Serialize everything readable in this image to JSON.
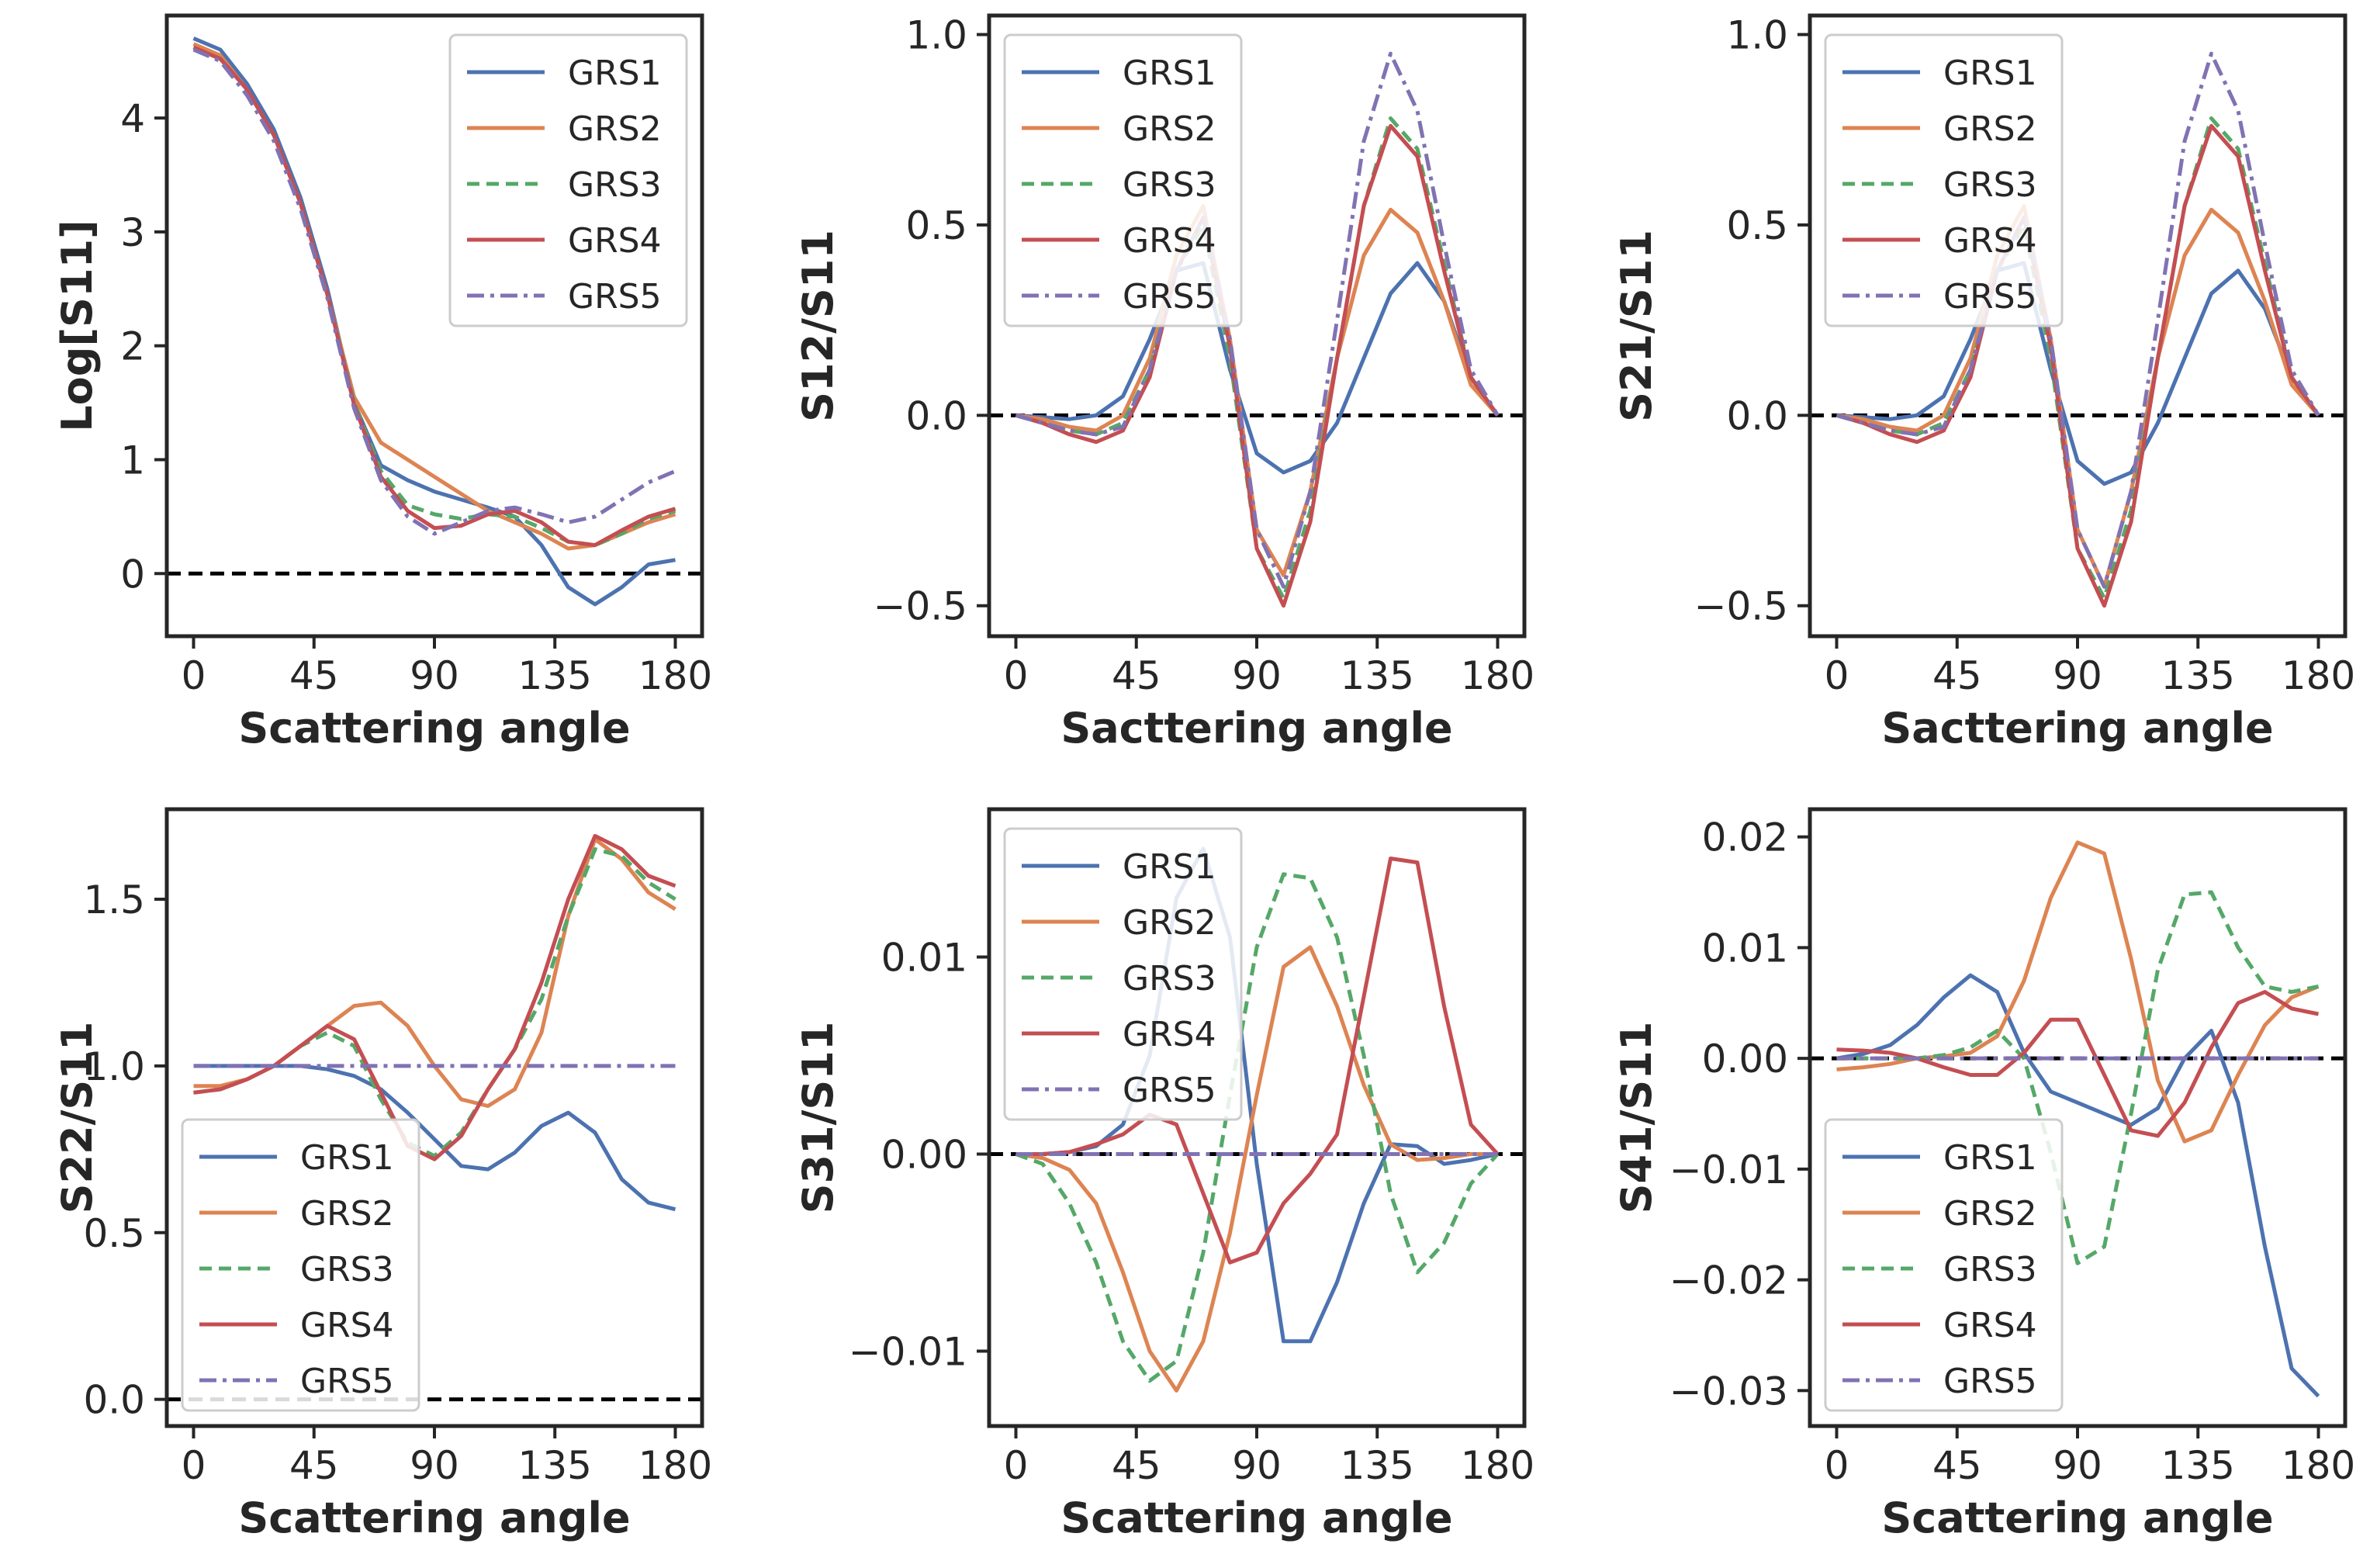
{
  "colors": {
    "GRS1": "#4c72b0",
    "GRS2": "#dd8452",
    "GRS3": "#55a868",
    "GRS4": "#c44e52",
    "GRS5": "#8172b3",
    "zero_line": "#000000",
    "axes": "#262626"
  },
  "chart_data": [
    {
      "type": "line",
      "title": "",
      "xlabel": "Scattering angle",
      "ylabel": "Log[S11]",
      "xlim": [
        -10,
        190
      ],
      "ylim": [
        -0.55,
        4.9
      ],
      "xticks": [
        0,
        45,
        90,
        135,
        180
      ],
      "xtick_labels": [
        "0",
        "45",
        "90",
        "135",
        "180"
      ],
      "yticks": [
        0,
        1,
        2,
        3,
        4
      ],
      "ytick_labels": [
        "0",
        "1",
        "2",
        "3",
        "4"
      ],
      "legend_position": "upper-right",
      "zero_line": 0,
      "x": [
        0,
        10,
        20,
        30,
        40,
        50,
        60,
        70,
        80,
        90,
        100,
        110,
        120,
        130,
        140,
        150,
        160,
        170,
        180
      ],
      "series": [
        {
          "name": "GRS1",
          "style": "solid",
          "values": [
            4.7,
            4.6,
            4.3,
            3.9,
            3.3,
            2.5,
            1.5,
            0.95,
            0.82,
            0.72,
            0.65,
            0.58,
            0.5,
            0.25,
            -0.12,
            -0.27,
            -0.12,
            0.08,
            0.12
          ]
        },
        {
          "name": "GRS2",
          "style": "solid",
          "values": [
            4.65,
            4.55,
            4.25,
            3.85,
            3.25,
            2.45,
            1.55,
            1.15,
            1.0,
            0.85,
            0.7,
            0.55,
            0.45,
            0.35,
            0.22,
            0.25,
            0.35,
            0.45,
            0.52
          ]
        },
        {
          "name": "GRS3",
          "style": "dashed",
          "values": [
            4.62,
            4.52,
            4.25,
            3.85,
            3.25,
            2.45,
            1.5,
            0.9,
            0.6,
            0.52,
            0.48,
            0.52,
            0.5,
            0.4,
            0.28,
            0.25,
            0.35,
            0.48,
            0.55
          ]
        },
        {
          "name": "GRS4",
          "style": "solid",
          "values": [
            4.62,
            4.52,
            4.25,
            3.85,
            3.25,
            2.45,
            1.48,
            0.85,
            0.55,
            0.4,
            0.42,
            0.52,
            0.55,
            0.45,
            0.28,
            0.25,
            0.38,
            0.5,
            0.57
          ]
        },
        {
          "name": "GRS5",
          "style": "dashdot",
          "values": [
            4.6,
            4.5,
            4.2,
            3.8,
            3.2,
            2.42,
            1.45,
            0.82,
            0.5,
            0.35,
            0.45,
            0.55,
            0.58,
            0.52,
            0.45,
            0.5,
            0.65,
            0.8,
            0.9
          ]
        }
      ]
    },
    {
      "type": "line",
      "title": "",
      "xlabel": "Sacttering angle",
      "ylabel": "S12/S11",
      "xlim": [
        -10,
        190
      ],
      "ylim": [
        -0.58,
        1.05
      ],
      "xticks": [
        0,
        45,
        90,
        135,
        180
      ],
      "xtick_labels": [
        "0",
        "45",
        "90",
        "135",
        "180"
      ],
      "yticks": [
        -0.5,
        0,
        0.5,
        1
      ],
      "ytick_labels": [
        "−0.5",
        "0.0",
        "0.5",
        "1.0"
      ],
      "legend_position": "upper-left",
      "zero_line": 0,
      "x": [
        0,
        10,
        20,
        30,
        40,
        50,
        60,
        70,
        80,
        90,
        100,
        110,
        120,
        130,
        140,
        150,
        160,
        170,
        180
      ],
      "series": [
        {
          "name": "GRS1",
          "style": "solid",
          "values": [
            0,
            -0.005,
            -0.01,
            0.0,
            0.05,
            0.2,
            0.38,
            0.4,
            0.12,
            -0.1,
            -0.15,
            -0.12,
            -0.02,
            0.15,
            0.32,
            0.4,
            0.3,
            0.1,
            0.0
          ]
        },
        {
          "name": "GRS2",
          "style": "solid",
          "values": [
            0,
            -0.01,
            -0.03,
            -0.04,
            0.0,
            0.15,
            0.42,
            0.55,
            0.2,
            -0.3,
            -0.42,
            -0.2,
            0.15,
            0.42,
            0.54,
            0.48,
            0.3,
            0.08,
            0.0
          ]
        },
        {
          "name": "GRS3",
          "style": "dashed",
          "values": [
            0,
            -0.02,
            -0.04,
            -0.05,
            -0.02,
            0.12,
            0.38,
            0.5,
            0.15,
            -0.35,
            -0.48,
            -0.25,
            0.15,
            0.55,
            0.78,
            0.7,
            0.4,
            0.1,
            0.0
          ]
        },
        {
          "name": "GRS4",
          "style": "solid",
          "values": [
            0,
            -0.02,
            -0.05,
            -0.07,
            -0.04,
            0.1,
            0.38,
            0.52,
            0.18,
            -0.35,
            -0.5,
            -0.28,
            0.15,
            0.55,
            0.76,
            0.68,
            0.38,
            0.1,
            0.0
          ]
        },
        {
          "name": "GRS5",
          "style": "dashdot",
          "values": [
            0,
            -0.02,
            -0.04,
            -0.05,
            -0.03,
            0.12,
            0.38,
            0.52,
            0.2,
            -0.3,
            -0.45,
            -0.2,
            0.25,
            0.72,
            0.95,
            0.8,
            0.45,
            0.12,
            0.0
          ]
        }
      ]
    },
    {
      "type": "line",
      "title": "",
      "xlabel": "Sacttering angle",
      "ylabel": "S21/S11",
      "xlim": [
        -10,
        190
      ],
      "ylim": [
        -0.58,
        1.05
      ],
      "xticks": [
        0,
        45,
        90,
        135,
        180
      ],
      "xtick_labels": [
        "0",
        "45",
        "90",
        "135",
        "180"
      ],
      "yticks": [
        -0.5,
        0,
        0.5,
        1
      ],
      "ytick_labels": [
        "−0.5",
        "0.0",
        "0.5",
        "1.0"
      ],
      "legend_position": "upper-left",
      "zero_line": 0,
      "x": [
        0,
        10,
        20,
        30,
        40,
        50,
        60,
        70,
        80,
        90,
        100,
        110,
        120,
        130,
        140,
        150,
        160,
        170,
        180
      ],
      "series": [
        {
          "name": "GRS1",
          "style": "solid",
          "values": [
            0,
            -0.005,
            -0.01,
            0.0,
            0.05,
            0.2,
            0.38,
            0.4,
            0.12,
            -0.12,
            -0.18,
            -0.15,
            -0.02,
            0.15,
            0.32,
            0.38,
            0.28,
            0.1,
            0.0
          ]
        },
        {
          "name": "GRS2",
          "style": "solid",
          "values": [
            0,
            -0.01,
            -0.03,
            -0.04,
            0.0,
            0.15,
            0.42,
            0.55,
            0.2,
            -0.3,
            -0.45,
            -0.2,
            0.15,
            0.42,
            0.54,
            0.48,
            0.3,
            0.08,
            0.0
          ]
        },
        {
          "name": "GRS3",
          "style": "dashed",
          "values": [
            0,
            -0.02,
            -0.04,
            -0.05,
            -0.02,
            0.12,
            0.38,
            0.5,
            0.15,
            -0.35,
            -0.48,
            -0.25,
            0.15,
            0.55,
            0.78,
            0.7,
            0.4,
            0.1,
            0.0
          ]
        },
        {
          "name": "GRS4",
          "style": "solid",
          "values": [
            0,
            -0.02,
            -0.05,
            -0.07,
            -0.04,
            0.1,
            0.38,
            0.52,
            0.18,
            -0.35,
            -0.5,
            -0.28,
            0.15,
            0.55,
            0.76,
            0.68,
            0.38,
            0.1,
            0.0
          ]
        },
        {
          "name": "GRS5",
          "style": "dashdot",
          "values": [
            0,
            -0.02,
            -0.04,
            -0.05,
            -0.03,
            0.12,
            0.38,
            0.52,
            0.2,
            -0.3,
            -0.45,
            -0.2,
            0.25,
            0.72,
            0.95,
            0.8,
            0.45,
            0.12,
            0.0
          ]
        }
      ]
    },
    {
      "type": "line",
      "title": "",
      "xlabel": "Scattering angle",
      "ylabel": "S22/S11",
      "xlim": [
        -10,
        190
      ],
      "ylim": [
        -0.08,
        1.77
      ],
      "xticks": [
        0,
        45,
        90,
        135,
        180
      ],
      "xtick_labels": [
        "0",
        "45",
        "90",
        "135",
        "180"
      ],
      "yticks": [
        0,
        0.5,
        1,
        1.5
      ],
      "ytick_labels": [
        "0.0",
        "0.5",
        "1.0",
        "1.5"
      ],
      "legend_position": "lower-left",
      "zero_line": 0,
      "x": [
        0,
        10,
        20,
        30,
        40,
        50,
        60,
        70,
        80,
        90,
        100,
        110,
        120,
        130,
        140,
        150,
        160,
        170,
        180
      ],
      "series": [
        {
          "name": "GRS1",
          "style": "solid",
          "values": [
            1.0,
            1.0,
            1.0,
            1.0,
            1.0,
            0.99,
            0.97,
            0.93,
            0.86,
            0.78,
            0.7,
            0.69,
            0.74,
            0.82,
            0.86,
            0.8,
            0.66,
            0.59,
            0.57
          ]
        },
        {
          "name": "GRS2",
          "style": "solid",
          "values": [
            0.94,
            0.94,
            0.96,
            1.0,
            1.06,
            1.12,
            1.18,
            1.19,
            1.12,
            1.0,
            0.9,
            0.88,
            0.93,
            1.1,
            1.45,
            1.68,
            1.62,
            1.52,
            1.47
          ]
        },
        {
          "name": "GRS3",
          "style": "dashed",
          "values": [
            0.92,
            0.93,
            0.96,
            1.0,
            1.06,
            1.1,
            1.06,
            0.9,
            0.77,
            0.73,
            0.8,
            0.93,
            1.05,
            1.2,
            1.45,
            1.65,
            1.63,
            1.55,
            1.5
          ]
        },
        {
          "name": "GRS4",
          "style": "solid",
          "values": [
            0.92,
            0.93,
            0.96,
            1.0,
            1.06,
            1.12,
            1.08,
            0.92,
            0.76,
            0.72,
            0.79,
            0.93,
            1.05,
            1.25,
            1.5,
            1.69,
            1.65,
            1.57,
            1.54
          ]
        },
        {
          "name": "GRS5",
          "style": "dashdot",
          "values": [
            1.0,
            1.0,
            1.0,
            1.0,
            1.0,
            1.0,
            1.0,
            1.0,
            1.0,
            1.0,
            1.0,
            1.0,
            1.0,
            1.0,
            1.0,
            1.0,
            1.0,
            1.0,
            1.0
          ]
        }
      ]
    },
    {
      "type": "line",
      "title": "",
      "xlabel": "Scattering angle",
      "ylabel": "S31/S11",
      "xlim": [
        -10,
        190
      ],
      "ylim": [
        -0.0138,
        0.0175
      ],
      "xticks": [
        0,
        45,
        90,
        135,
        180
      ],
      "xtick_labels": [
        "0",
        "45",
        "90",
        "135",
        "180"
      ],
      "yticks": [
        -0.01,
        0,
        0.01
      ],
      "ytick_labels": [
        "−0.01",
        "0.00",
        "0.01"
      ],
      "legend_position": "upper-left",
      "zero_line": 0,
      "x": [
        0,
        10,
        20,
        30,
        40,
        50,
        60,
        70,
        80,
        90,
        100,
        110,
        120,
        130,
        140,
        150,
        160,
        170,
        180
      ],
      "series": [
        {
          "name": "GRS1",
          "style": "solid",
          "values": [
            0,
            0.0,
            0.0001,
            0.0004,
            0.0015,
            0.005,
            0.013,
            0.0155,
            0.011,
            -0.0005,
            -0.0095,
            -0.0095,
            -0.0065,
            -0.0025,
            0.0005,
            0.0004,
            -0.0005,
            -0.0003,
            0.0
          ]
        },
        {
          "name": "GRS2",
          "style": "solid",
          "values": [
            0,
            -0.0002,
            -0.0008,
            -0.0025,
            -0.006,
            -0.01,
            -0.012,
            -0.0095,
            -0.004,
            0.003,
            0.0095,
            0.0105,
            0.0075,
            0.0035,
            0.0005,
            -0.0003,
            -0.0002,
            0.0,
            0.0
          ]
        },
        {
          "name": "GRS3",
          "style": "dashed",
          "values": [
            0,
            -0.0005,
            -0.0025,
            -0.0055,
            -0.0095,
            -0.0115,
            -0.0105,
            -0.005,
            0.003,
            0.0105,
            0.0142,
            0.014,
            0.011,
            0.005,
            -0.002,
            -0.006,
            -0.0045,
            -0.0015,
            0.0
          ]
        },
        {
          "name": "GRS4",
          "style": "solid",
          "values": [
            0,
            0.0,
            0.0001,
            0.0005,
            0.001,
            0.002,
            0.0015,
            -0.002,
            -0.0055,
            -0.005,
            -0.0025,
            -0.001,
            0.001,
            0.008,
            0.015,
            0.0148,
            0.0075,
            0.0015,
            0.0
          ]
        },
        {
          "name": "GRS5",
          "style": "dashdot",
          "values": [
            0,
            0,
            0,
            0,
            0,
            0,
            0,
            0,
            0,
            0,
            0,
            0,
            0,
            0,
            0,
            0,
            0,
            0,
            0
          ]
        }
      ]
    },
    {
      "type": "line",
      "title": "",
      "xlabel": "Scattering angle",
      "ylabel": "S41/S11",
      "xlim": [
        -10,
        190
      ],
      "ylim": [
        -0.0332,
        0.0225
      ],
      "xticks": [
        0,
        45,
        90,
        135,
        180
      ],
      "xtick_labels": [
        "0",
        "45",
        "90",
        "135",
        "180"
      ],
      "yticks": [
        -0.03,
        -0.02,
        -0.01,
        0,
        0.01,
        0.02
      ],
      "ytick_labels": [
        "−0.03",
        "−0.02",
        "−0.01",
        "0.00",
        "0.01",
        "0.02"
      ],
      "legend_position": "lower-left",
      "zero_line": 0,
      "x": [
        0,
        10,
        20,
        30,
        40,
        50,
        60,
        70,
        80,
        90,
        100,
        110,
        120,
        130,
        140,
        150,
        160,
        170,
        180
      ],
      "series": [
        {
          "name": "GRS1",
          "style": "solid",
          "values": [
            0.0,
            0.0004,
            0.0012,
            0.003,
            0.0055,
            0.0075,
            0.006,
            0.0005,
            -0.003,
            -0.004,
            -0.005,
            -0.006,
            -0.0045,
            0.0,
            0.0025,
            -0.004,
            -0.017,
            -0.028,
            -0.0305
          ]
        },
        {
          "name": "GRS2",
          "style": "solid",
          "values": [
            -0.001,
            -0.0008,
            -0.0005,
            0.0,
            0.0002,
            0.0005,
            0.002,
            0.007,
            0.0145,
            0.0195,
            0.0185,
            0.009,
            -0.002,
            -0.0075,
            -0.0065,
            -0.0015,
            0.003,
            0.0055,
            0.0065
          ]
        },
        {
          "name": "GRS3",
          "style": "dashed",
          "values": [
            0,
            0,
            0,
            0.0,
            0.0003,
            0.001,
            0.0025,
            0.0,
            -0.0085,
            -0.0185,
            -0.017,
            -0.005,
            0.008,
            0.0148,
            0.015,
            0.01,
            0.0065,
            0.006,
            0.0065
          ]
        },
        {
          "name": "GRS4",
          "style": "solid",
          "values": [
            0.0008,
            0.0007,
            0.0005,
            0.0,
            -0.0008,
            -0.0015,
            -0.0015,
            0.0005,
            0.0035,
            0.0035,
            -0.0015,
            -0.0065,
            -0.007,
            -0.004,
            0.001,
            0.005,
            0.006,
            0.0045,
            0.004
          ]
        },
        {
          "name": "GRS5",
          "style": "dashdot",
          "values": [
            0,
            0,
            0,
            0,
            0,
            0,
            0,
            0,
            0,
            0,
            0,
            0,
            0,
            0,
            0,
            0,
            0,
            0,
            0
          ]
        }
      ]
    }
  ]
}
